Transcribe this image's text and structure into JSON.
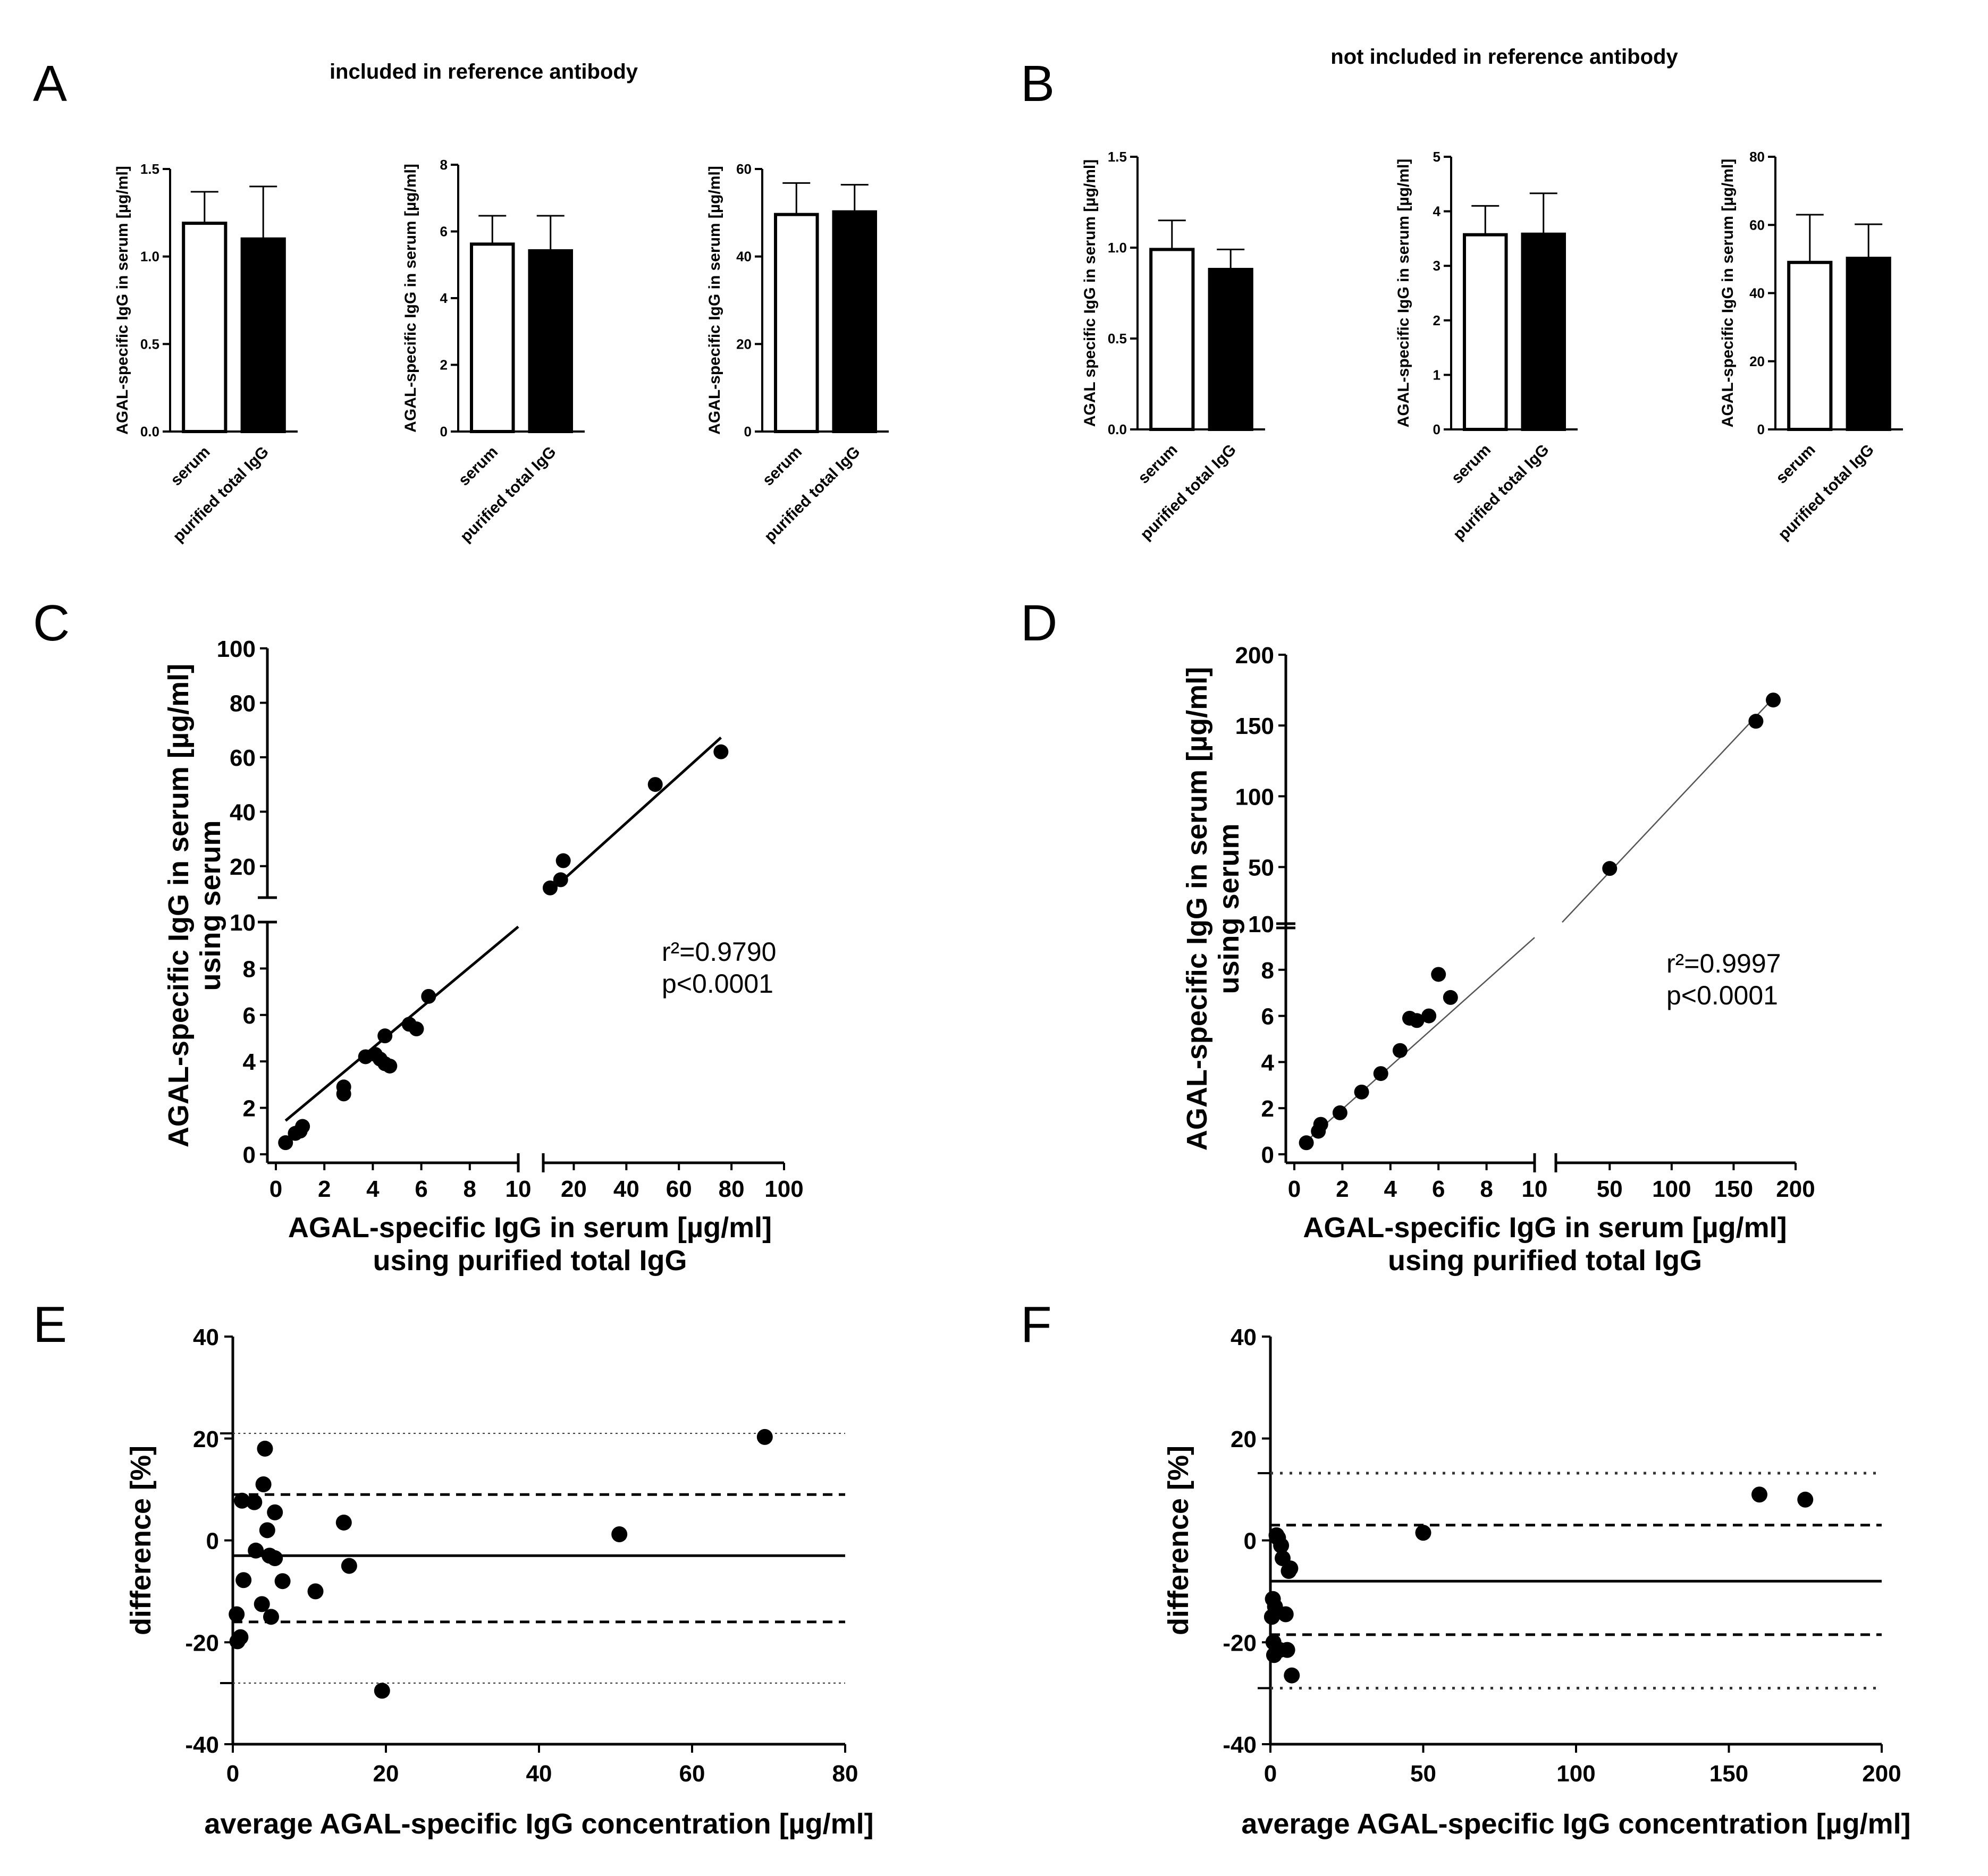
{
  "figure": {
    "panel_letters": [
      "A",
      "B",
      "C",
      "D",
      "E",
      "F"
    ],
    "group_titles": {
      "A": "included in reference antibody",
      "B": "not included in reference antibody"
    }
  },
  "chart_data": [
    {
      "panel": "A1",
      "type": "bar",
      "title": "included in reference antibody",
      "categories": [
        "serum",
        "purified total IgG"
      ],
      "values": [
        1.19,
        1.1
      ],
      "errors": [
        0.18,
        0.3
      ],
      "fills": [
        "#ffffff",
        "#000000"
      ],
      "ylabel": "AGAL-specific IgG in serum [µg/ml]",
      "ylim": [
        0,
        1.5
      ],
      "yticks": [
        0,
        0.5,
        1.0,
        1.5
      ],
      "yticklabels": [
        "0.0",
        "0.5",
        "1.0",
        "1.5"
      ]
    },
    {
      "panel": "A2",
      "type": "bar",
      "categories": [
        "serum",
        "purified total IgG"
      ],
      "values": [
        5.62,
        5.42
      ],
      "errors": [
        0.85,
        1.05
      ],
      "fills": [
        "#ffffff",
        "#000000"
      ],
      "ylabel": "AGAL-specific IgG in serum [µg/ml]",
      "ylim": [
        0,
        8
      ],
      "yticks": [
        0,
        2,
        4,
        6,
        8
      ],
      "yticklabels": [
        "0",
        "2",
        "4",
        "6",
        "8"
      ]
    },
    {
      "panel": "A3",
      "type": "bar",
      "categories": [
        "serum",
        "purified total IgG"
      ],
      "values": [
        49.6,
        50.2
      ],
      "errors": [
        7.2,
        6.2
      ],
      "fills": [
        "#ffffff",
        "#000000"
      ],
      "ylabel": "AGAL-specific IgG in serum [µg/ml]",
      "ylim": [
        0,
        60
      ],
      "yticks": [
        0,
        20,
        40,
        60
      ],
      "yticklabels": [
        "0",
        "20",
        "40",
        "60"
      ]
    },
    {
      "panel": "B1",
      "type": "bar",
      "title": "not included in reference antibody",
      "categories": [
        "serum",
        "purified total IgG"
      ],
      "values": [
        0.99,
        0.88
      ],
      "errors": [
        0.16,
        0.11
      ],
      "fills": [
        "#ffffff",
        "#000000"
      ],
      "ylabel": "AGAL specific IgG in serum [µg/ml]",
      "ylim": [
        0,
        1.5
      ],
      "yticks": [
        0,
        0.5,
        1.0,
        1.5
      ],
      "yticklabels": [
        "0.0",
        "0.5",
        "1.0",
        "1.5"
      ]
    },
    {
      "panel": "B2",
      "type": "bar",
      "categories": [
        "serum",
        "purified total IgG"
      ],
      "values": [
        3.57,
        3.58
      ],
      "errors": [
        0.53,
        0.75
      ],
      "fills": [
        "#ffffff",
        "#000000"
      ],
      "ylabel": "AGAL-specific IgG in serum [µg/ml]",
      "ylim": [
        0,
        5
      ],
      "yticks": [
        0,
        1,
        2,
        3,
        4,
        5
      ],
      "yticklabels": [
        "0",
        "1",
        "2",
        "3",
        "4",
        "5"
      ]
    },
    {
      "panel": "B3",
      "type": "bar",
      "categories": [
        "serum",
        "purified total IgG"
      ],
      "values": [
        49.0,
        50.2
      ],
      "errors": [
        14.0,
        10.0
      ],
      "fills": [
        "#ffffff",
        "#000000"
      ],
      "ylabel": "AGAL-specific IgG in serum [µg/ml]",
      "ylim": [
        0,
        80
      ],
      "yticks": [
        0,
        20,
        40,
        60,
        80
      ],
      "yticklabels": [
        "0",
        "20",
        "40",
        "60",
        "80"
      ]
    },
    {
      "panel": "C",
      "type": "scatter",
      "xlabel": [
        "AGAL-specific IgG in serum [µg/ml]",
        "using purified total IgG"
      ],
      "ylabel": [
        "AGAL-specific IgG in serum [µg/ml]",
        "using serum"
      ],
      "broken_axes": true,
      "x_low": [
        0,
        10
      ],
      "x_high": [
        10,
        100
      ],
      "y_low": [
        0,
        10
      ],
      "y_high": [
        10,
        100
      ],
      "xticks_low": [
        0,
        2,
        4,
        6,
        8,
        10
      ],
      "xticks_high": [
        20,
        40,
        60,
        80,
        100
      ],
      "yticks_low": [
        0,
        2,
        4,
        6,
        8,
        10
      ],
      "yticks_high": [
        20,
        40,
        60,
        80,
        100
      ],
      "x": [
        0.4,
        0.8,
        1.0,
        1.1,
        2.8,
        2.8,
        3.7,
        4.1,
        4.3,
        4.5,
        4.5,
        4.7,
        5.5,
        5.8,
        6.3,
        11,
        15,
        16,
        51,
        76
      ],
      "y": [
        0.5,
        0.9,
        1.0,
        1.2,
        2.6,
        2.9,
        4.2,
        4.3,
        4.1,
        3.9,
        5.1,
        3.8,
        5.6,
        5.4,
        6.8,
        12,
        15,
        22,
        50,
        62
      ],
      "fit_line": {
        "x": [
          0.4,
          76
        ],
        "slope": 0.87,
        "intercept": 1.1,
        "stroke_width": 5,
        "stroke": "#000000"
      },
      "annotation": [
        "r²=0.9790",
        "p<0.0001"
      ]
    },
    {
      "panel": "D",
      "type": "scatter",
      "xlabel": [
        "AGAL-specific IgG in serum [µg/ml]",
        "using purified total IgG"
      ],
      "ylabel": [
        "AGAL-specific IgG in serum [µg/ml]",
        "using serum"
      ],
      "broken_axes": true,
      "x_low": [
        0,
        10
      ],
      "x_high": [
        10,
        200
      ],
      "y_low": [
        0,
        10
      ],
      "y_high": [
        10,
        200
      ],
      "xticks_low": [
        0,
        2,
        4,
        6,
        8,
        10
      ],
      "xticks_high": [
        50,
        100,
        150,
        200
      ],
      "yticks_low": [
        0,
        2,
        4,
        6,
        8,
        10
      ],
      "yticks_high": [
        50,
        100,
        150,
        200
      ],
      "x": [
        0.5,
        1.0,
        1.1,
        1.9,
        2.8,
        3.6,
        4.4,
        4.8,
        5.1,
        5.6,
        6.0,
        6.5,
        50,
        168,
        182
      ],
      "y": [
        0.5,
        1.0,
        1.3,
        1.8,
        2.7,
        3.5,
        4.5,
        5.9,
        5.8,
        6.0,
        7.8,
        6.8,
        49,
        153,
        168
      ],
      "fit_line": {
        "x": [
          0.5,
          182
        ],
        "slope": 0.93,
        "intercept": 0.1,
        "stroke_width": 2.5,
        "stroke": "#555555"
      },
      "annotation": [
        "r²=0.9997",
        "p<0.0001"
      ]
    },
    {
      "panel": "E",
      "type": "scatter",
      "xlabel": "average AGAL-specific IgG concentration [µg/ml]",
      "ylabel": "difference [%]",
      "xlim": [
        0,
        80
      ],
      "ylim": [
        -40,
        40
      ],
      "xticks": [
        0,
        20,
        40,
        60,
        80
      ],
      "yticks": [
        -40,
        -20,
        0,
        20,
        40
      ],
      "mean_line": -3.0,
      "loa_95": [
        -16.0,
        9.0
      ],
      "outer_lines": [
        -28.0,
        21.0
      ],
      "x": [
        0.5,
        0.6,
        1.0,
        1.2,
        1.4,
        2.8,
        3.0,
        3.8,
        4.0,
        4.2,
        4.5,
        4.8,
        5.0,
        5.5,
        5.5,
        6.5,
        10.8,
        14.5,
        15.2,
        19.5,
        50.5,
        69.5
      ],
      "y": [
        -14.5,
        -19.8,
        -19.0,
        7.8,
        -7.8,
        7.5,
        -2.0,
        -12.5,
        11.0,
        18.0,
        2.0,
        -3.0,
        -15.0,
        5.5,
        -3.5,
        -8.0,
        -10.0,
        3.5,
        -5.0,
        -29.5,
        1.2,
        20.3
      ]
    },
    {
      "panel": "F",
      "type": "scatter",
      "xlabel": "average AGAL-specific IgG concentration [µg/ml]",
      "ylabel": "difference [%]",
      "xlim": [
        0,
        200
      ],
      "ylim": [
        -40,
        40
      ],
      "xticks": [
        0,
        50,
        100,
        150,
        200
      ],
      "yticks": [
        -40,
        -20,
        0,
        20,
        40
      ],
      "mean_line": -8.0,
      "loa_95": [
        -18.5,
        3.0
      ],
      "outer_lines": [
        -29.0,
        13.2
      ],
      "x": [
        0.5,
        0.8,
        1.0,
        1.2,
        1.5,
        2.0,
        2.5,
        3.0,
        3.5,
        4.0,
        5.0,
        5.5,
        6.0,
        6.5,
        7.0,
        50,
        160,
        175
      ],
      "y": [
        -15.0,
        -11.5,
        -20.0,
        -22.5,
        -13.0,
        1.0,
        0.5,
        -21.5,
        -1.0,
        -3.5,
        -14.5,
        -21.5,
        -6.0,
        -5.5,
        -26.5,
        1.5,
        9.0,
        8.0
      ]
    }
  ]
}
